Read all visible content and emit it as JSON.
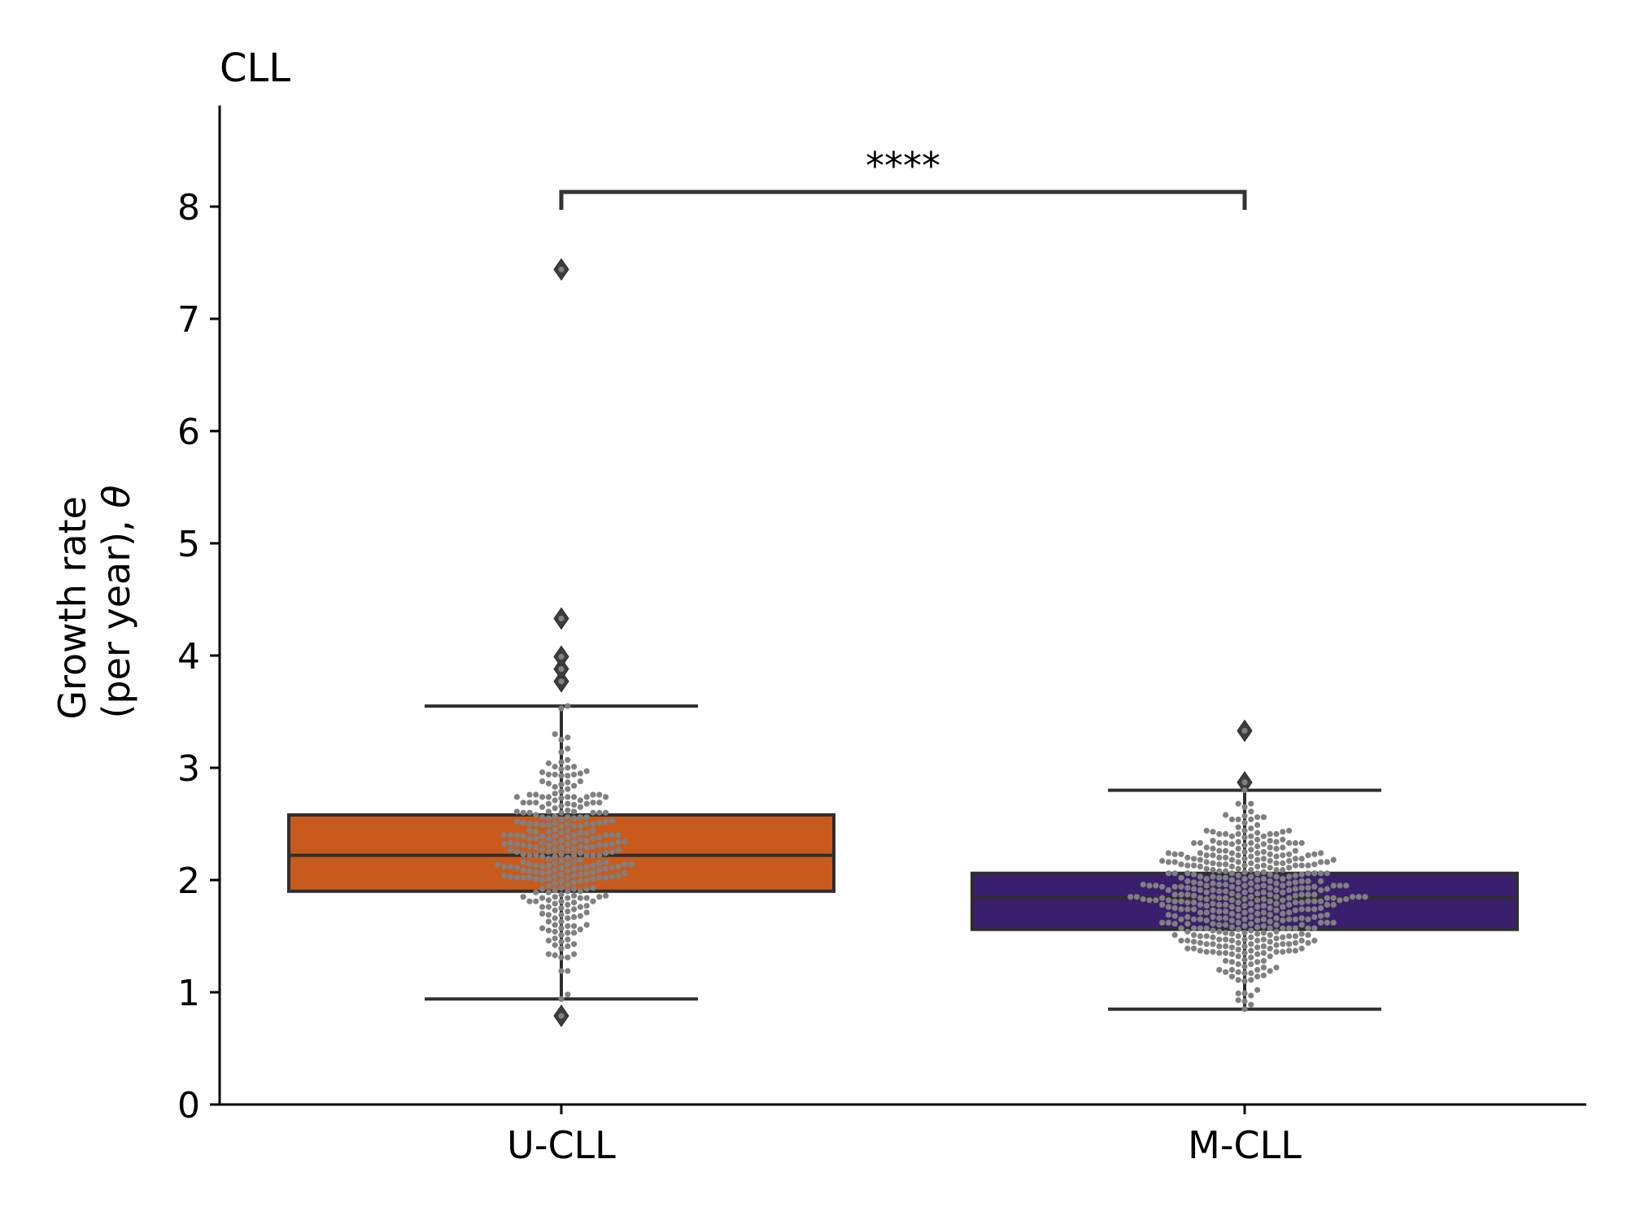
{
  "chart_data": {
    "type": "box",
    "title": "CLL",
    "xlabel": "",
    "ylabel_line1": "Growth rate",
    "ylabel_line2_prefix": "(per year), ",
    "ylabel_symbol": "θ",
    "ylim": [
      0,
      8.9
    ],
    "yticks": [
      0,
      1,
      2,
      3,
      4,
      5,
      6,
      7,
      8
    ],
    "grid": false,
    "categories": [
      "U-CLL",
      "M-CLL"
    ],
    "colors": {
      "U-CLL": "#c85a1e",
      "M-CLL": "#3a1f6e",
      "points": "#808080",
      "outline": "#2e2e2e"
    },
    "boxes": [
      {
        "name": "U-CLL",
        "q1": 1.9,
        "median": 2.22,
        "q3": 2.58,
        "whisker_low": 0.94,
        "whisker_high": 3.55,
        "outliers": [
          0.79,
          3.77,
          3.88,
          3.99,
          4.33,
          7.44
        ]
      },
      {
        "name": "M-CLL",
        "q1": 1.56,
        "median": 1.84,
        "q3": 2.06,
        "whisker_low": 0.85,
        "whisker_high": 2.8,
        "outliers": [
          2.87,
          3.33
        ]
      }
    ],
    "annotation": {
      "text": "****",
      "from": "U-CLL",
      "to": "M-CLL",
      "y": 8.13
    }
  }
}
